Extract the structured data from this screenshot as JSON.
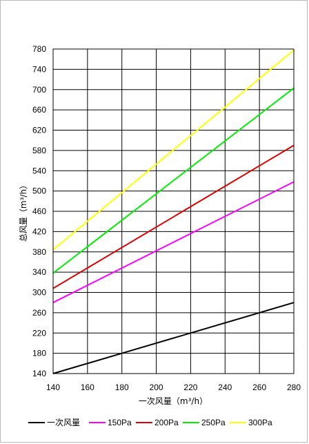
{
  "chart_data": {
    "type": "line",
    "xlabel": "一次风量（m³/h）",
    "ylabel": "总风量（m³/h）",
    "xlim": [
      140,
      280
    ],
    "ylim": [
      140,
      780
    ],
    "x_ticks": [
      140,
      160,
      180,
      200,
      220,
      240,
      260,
      280
    ],
    "y_ticks": [
      140,
      180,
      220,
      260,
      300,
      340,
      380,
      420,
      460,
      500,
      540,
      580,
      620,
      660,
      700,
      740,
      780
    ],
    "x_tick_labels": [
      "140",
      "160",
      "180",
      "200",
      "220",
      "240",
      "260",
      "280"
    ],
    "y_tick_labels": [
      "140",
      "180",
      "220",
      "260",
      "300",
      "340",
      "380",
      "420",
      "460",
      "500",
      "540",
      "580",
      "620",
      "660",
      "700",
      "740",
      "780"
    ],
    "grid": true,
    "legend_position": "bottom",
    "series": [
      {
        "name": "一次风量",
        "color": "#000000",
        "x": [
          140,
          280
        ],
        "y": [
          140,
          280
        ]
      },
      {
        "name": "150Pa",
        "color": "#ff00ff",
        "x": [
          140,
          280
        ],
        "y": [
          280,
          518
        ]
      },
      {
        "name": "200Pa",
        "color": "#dd0000",
        "x": [
          140,
          280
        ],
        "y": [
          308,
          590
        ]
      },
      {
        "name": "250Pa",
        "color": "#00ee00",
        "x": [
          140,
          280
        ],
        "y": [
          338,
          703
        ]
      },
      {
        "name": "300Pa",
        "color": "#ffff00",
        "x": [
          140,
          280
        ],
        "y": [
          384,
          778
        ]
      }
    ]
  }
}
